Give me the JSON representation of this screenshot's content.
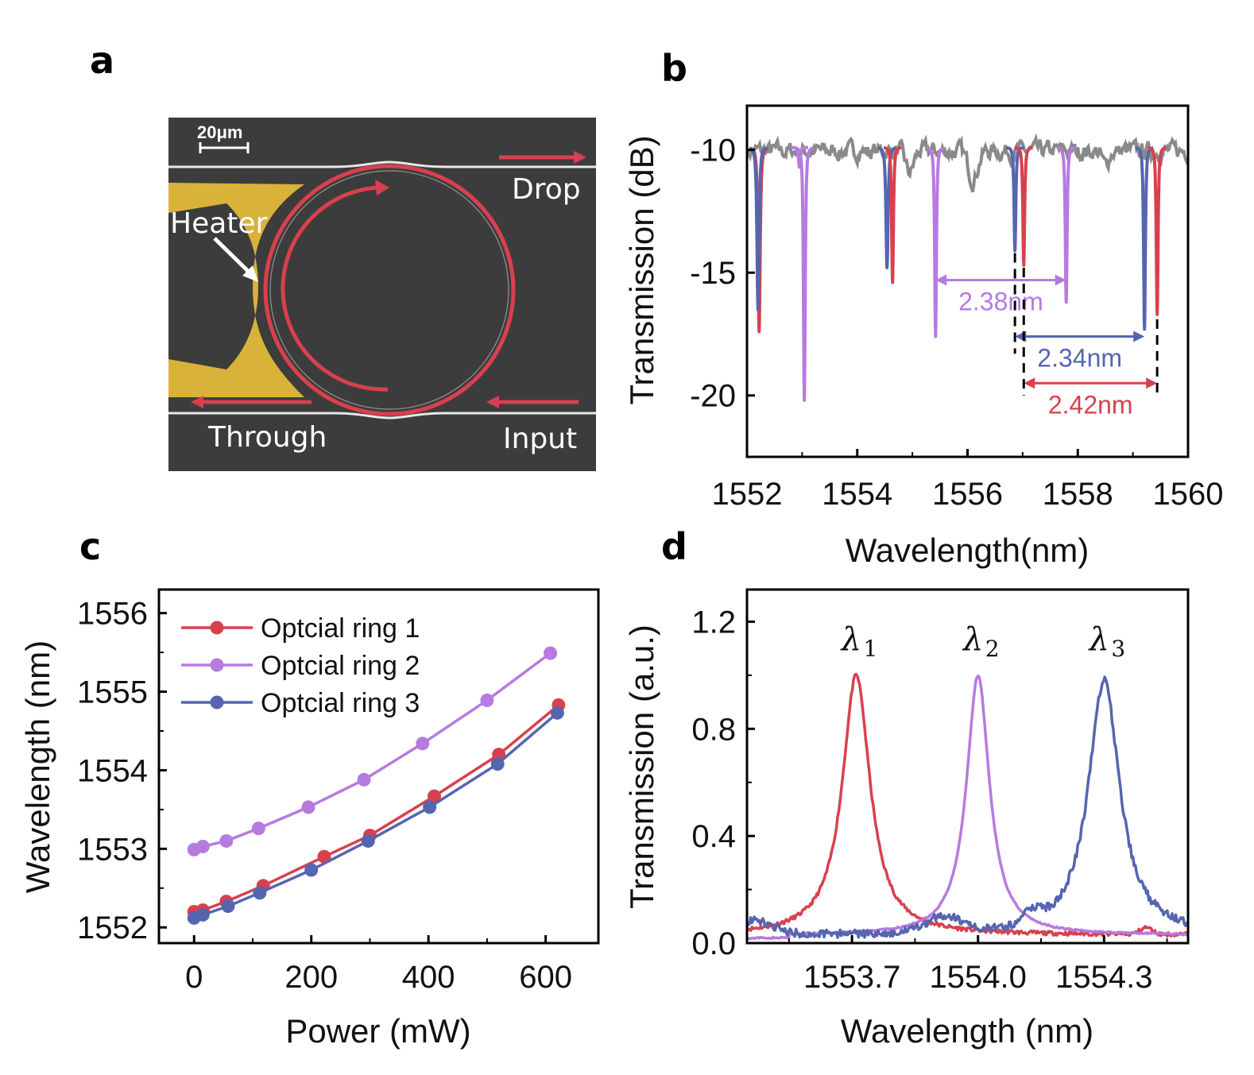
{
  "colors": {
    "red": "#d9404e",
    "purple": "#b67ae0",
    "blue": "#5565b0",
    "gray": "#8a8a8a",
    "gold": "#d9b23a",
    "sem_bg": "#3c3c3c"
  },
  "panels": {
    "a": "a",
    "b": "b",
    "c": "c",
    "d": "d"
  },
  "panel_a": {
    "scale_bar": "20μm",
    "labels": {
      "drop": "Drop",
      "heater": "Heater",
      "through": "Through",
      "input": "Input"
    }
  },
  "chart_data": [
    {
      "id": "b",
      "type": "line",
      "title": "",
      "xlabel": "Wavelength(nm)",
      "ylabel": "Transmission (dB)",
      "xlim": [
        1552,
        1560
      ],
      "ylim": [
        -22.5,
        -8.2
      ],
      "xticks": [
        "1552",
        "1554",
        "1556",
        "1558",
        "1560"
      ],
      "yticks": [
        "-10",
        "-15",
        "-20"
      ],
      "baseline": -9.9,
      "resonances": [
        {
          "series": "red",
          "center": 1552.22,
          "depth": -17.4,
          "width": 0.06
        },
        {
          "series": "blue",
          "center": 1552.2,
          "depth": -16.5,
          "width": 0.06
        },
        {
          "series": "purple",
          "center": 1552.95,
          "depth": -10.7,
          "width": 0.05
        },
        {
          "series": "purple",
          "center": 1553.04,
          "depth": -20.2,
          "width": 0.05
        },
        {
          "series": "blue",
          "center": 1554.54,
          "depth": -14.8,
          "width": 0.06
        },
        {
          "series": "red",
          "center": 1554.64,
          "depth": -15.4,
          "width": 0.05
        },
        {
          "series": "purple",
          "center": 1555.42,
          "depth": -17.6,
          "width": 0.05
        },
        {
          "series": "blue",
          "center": 1556.86,
          "depth": -14.1,
          "width": 0.05
        },
        {
          "series": "red",
          "center": 1557.02,
          "depth": -14.7,
          "width": 0.05
        },
        {
          "series": "purple",
          "center": 1557.79,
          "depth": -16.2,
          "width": 0.05
        },
        {
          "series": "blue",
          "center": 1559.21,
          "depth": -17.3,
          "width": 0.05
        },
        {
          "series": "red",
          "center": 1559.44,
          "depth": -16.7,
          "width": 0.05
        }
      ],
      "annotations": [
        {
          "text": "2.38nm",
          "series": "purple",
          "from": 1555.42,
          "to": 1557.79,
          "y": -15.3
        },
        {
          "text": "2.34nm",
          "series": "blue",
          "from": 1556.86,
          "to": 1559.21,
          "y": -17.6
        },
        {
          "text": "2.42nm",
          "series": "red",
          "from": 1557.02,
          "to": 1559.44,
          "y": -19.5
        }
      ]
    },
    {
      "id": "c",
      "type": "line",
      "title": "",
      "xlabel": "Power (mW)",
      "ylabel": "Wavelength (nm)",
      "xlim": [
        -60,
        690
      ],
      "ylim": [
        1551.8,
        1556.3
      ],
      "xticks": [
        "0",
        "200",
        "400",
        "600"
      ],
      "yticks": [
        "1552",
        "1553",
        "1554",
        "1555",
        "1556"
      ],
      "legend": "top-left",
      "series": [
        {
          "name": "Optcial ring 1",
          "color": "red",
          "x": [
            0,
            15,
            55,
            118,
            222,
            300,
            410,
            520,
            622
          ],
          "y": [
            1552.2,
            1552.22,
            1552.33,
            1552.53,
            1552.9,
            1553.17,
            1553.67,
            1554.2,
            1554.83
          ]
        },
        {
          "name": "Optcial ring 2",
          "color": "purple",
          "x": [
            0,
            15,
            55,
            110,
            195,
            290,
            390,
            500,
            608
          ],
          "y": [
            1552.99,
            1553.03,
            1553.1,
            1553.26,
            1553.53,
            1553.88,
            1554.34,
            1554.89,
            1555.49
          ]
        },
        {
          "name": "Optcial ring 3",
          "color": "blue",
          "x": [
            0,
            15,
            58,
            112,
            200,
            297,
            402,
            518,
            620
          ],
          "y": [
            1552.12,
            1552.16,
            1552.27,
            1552.44,
            1552.73,
            1553.1,
            1553.53,
            1554.08,
            1554.73
          ]
        }
      ]
    },
    {
      "id": "d",
      "type": "line",
      "title": "",
      "xlabel": "Wavelength (nm)",
      "ylabel": "Transmission (a.u.)",
      "xlim": [
        1553.45,
        1554.5
      ],
      "ylim": [
        0.0,
        1.32
      ],
      "xticks": [
        "1553.7",
        "1554.0",
        "1554.3"
      ],
      "yticks": [
        "0.0",
        "0.4",
        "0.8",
        "1.2"
      ],
      "series": [
        {
          "name": "λ1",
          "label_main": "λ",
          "label_sub": "1",
          "color": "red",
          "center": 1553.71,
          "peak": 1.0,
          "hwhm": 0.04
        },
        {
          "name": "λ2",
          "label_main": "λ",
          "label_sub": "2",
          "color": "purple",
          "center": 1554.0,
          "peak": 1.0,
          "hwhm": 0.033
        },
        {
          "name": "λ3",
          "label_main": "λ",
          "label_sub": "3",
          "color": "blue",
          "center": 1554.3,
          "peak": 0.98,
          "hwhm": 0.045
        }
      ]
    }
  ]
}
